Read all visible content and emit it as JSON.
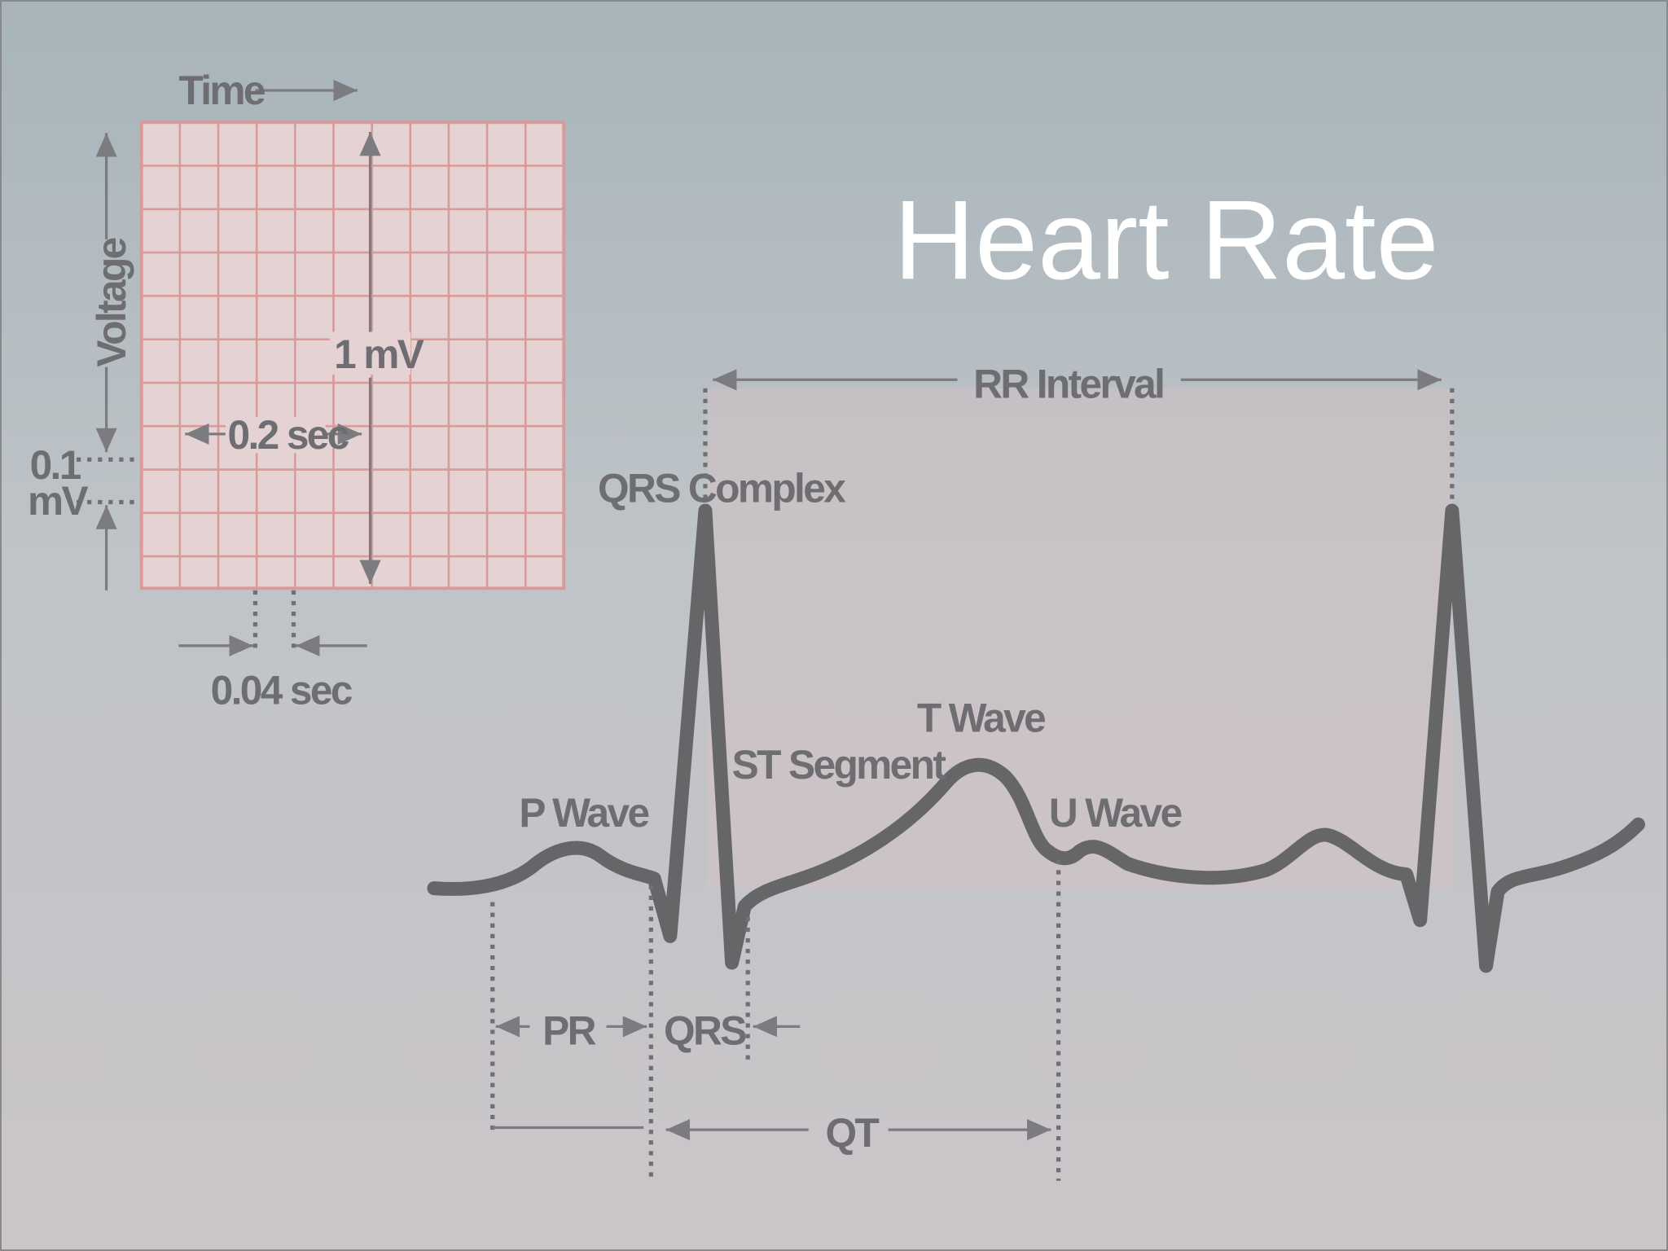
{
  "title": "Heart Rate",
  "grid_panel": {
    "time": "Time",
    "voltage": "Voltage",
    "amplitude": "1 mV",
    "big_box": "0.2 sec",
    "small_box_voltage": [
      "0.1",
      "mV"
    ],
    "small_box_time": "0.04 sec"
  },
  "waveform": {
    "rr": "RR Interval",
    "qrs_complex": "QRS Complex",
    "t_wave": "T Wave",
    "st_segment": "ST Segment",
    "p_wave": "P Wave",
    "u_wave": "U Wave"
  },
  "intervals": {
    "pr": "PR",
    "qrs": "QRS",
    "qt": "QT"
  }
}
